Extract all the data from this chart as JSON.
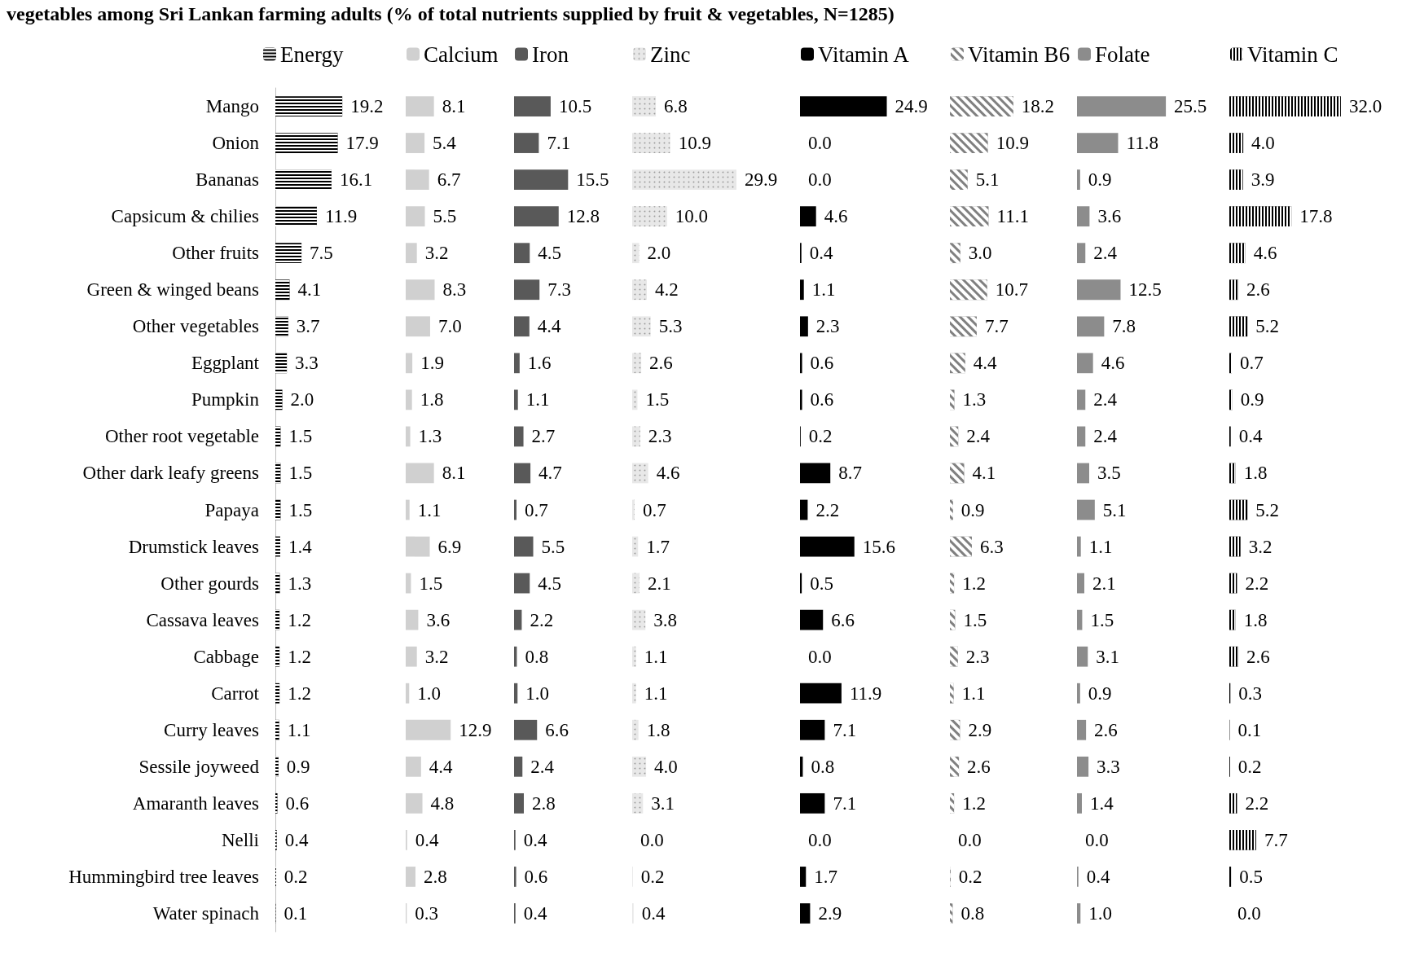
{
  "chart_data": [
    {
      "type": "bar",
      "orientation": "horizontal",
      "title": "vegetables among Sri Lankan farming adults (% of total nutrients supplied by fruit & vegetables, N=1285)",
      "legend": "top",
      "tick_labels": "y",
      "categories": [
        "Mango",
        "Onion",
        "Bananas",
        "Capsicum & chilies",
        "Other fruits",
        "Green & winged beans",
        "Other vegetables",
        "Eggplant",
        "Pumpkin",
        "Other root vegetable",
        "Other dark leafy greens",
        "Papaya",
        "Drumstick leaves",
        "Other gourds",
        "Cassava leaves",
        "Cabbage",
        "Carrot",
        "Curry leaves",
        "Sessile joyweed",
        "Amaranth leaves",
        "Nelli",
        "Hummingbird tree leaves",
        "Water spinach"
      ],
      "series": [
        {
          "name": "Energy",
          "color": "#000000",
          "values": [
            19.2,
            17.9,
            16.1,
            11.9,
            7.5,
            4.1,
            3.7,
            3.3,
            2.0,
            1.5,
            1.5,
            1.5,
            1.4,
            1.3,
            1.2,
            1.2,
            1.2,
            1.1,
            0.9,
            0.6,
            0.4,
            0.2,
            0.1
          ],
          "value_labels": [
            "19.2",
            "17.9",
            "16.1",
            "11.9",
            "7.5",
            "4.1",
            "3.7",
            "3.3",
            "2.0",
            "1.5",
            "1.5",
            "1.5",
            "1.4",
            "1.3",
            "1.2",
            "1.2",
            "1.2",
            "1.1",
            "0.9",
            "0.6",
            "0.4",
            "0.2",
            "0.1"
          ]
        }
      ]
    },
    {
      "type": "bar",
      "orientation": "horizontal",
      "legend": "top",
      "tick_labels": false,
      "categories": [
        null,
        null,
        null,
        null,
        null,
        null,
        null,
        null,
        null,
        null,
        null,
        null,
        null,
        null,
        null,
        null,
        null,
        null,
        null,
        null,
        null,
        null,
        null
      ],
      "series": [
        {
          "name": "Calcium",
          "color": "#d0d0d0",
          "values": [
            8.1,
            5.4,
            6.7,
            5.5,
            3.2,
            8.3,
            7.0,
            1.9,
            1.8,
            1.3,
            8.1,
            1.1,
            6.9,
            1.5,
            3.6,
            3.2,
            1.0,
            12.9,
            4.4,
            4.8,
            0.4,
            2.8,
            0.3
          ],
          "value_labels": [
            "8.1",
            "5.4",
            "6.7",
            "5.5",
            "3.2",
            "8.3",
            "7.0",
            "1.9",
            "1.8",
            "1.3",
            "8.1",
            "1.1",
            "6.9",
            "1.5",
            "3.6",
            "3.2",
            "1.0",
            "12.9",
            "4.4",
            "4.8",
            "0.4",
            "2.8",
            "0.3"
          ]
        }
      ]
    },
    {
      "type": "bar",
      "orientation": "horizontal",
      "legend": "top",
      "tick_labels": false,
      "categories": [
        null,
        null,
        null,
        null,
        null,
        null,
        null,
        null,
        null,
        null,
        null,
        null,
        null,
        null,
        null,
        null,
        null,
        null,
        null,
        null,
        null,
        null,
        null
      ],
      "series": [
        {
          "name": "Iron",
          "color": "#595959",
          "values": [
            10.5,
            7.1,
            15.5,
            12.8,
            4.5,
            7.3,
            4.4,
            1.6,
            1.1,
            2.7,
            4.7,
            0.7,
            5.5,
            4.5,
            2.2,
            0.8,
            1.0,
            6.6,
            2.4,
            2.8,
            0.4,
            0.6,
            0.4
          ],
          "value_labels": [
            "10.5",
            "7.1",
            "15.5",
            "12.8",
            "4.5",
            "7.3",
            "4.4",
            "1.6",
            "1.1",
            "2.7",
            "4.7",
            "0.7",
            "5.5",
            "4.5",
            "2.2",
            "0.8",
            "1.0",
            "6.6",
            "2.4",
            "2.8",
            "0.4",
            "0.6",
            "0.4"
          ]
        }
      ]
    },
    {
      "type": "bar",
      "orientation": "horizontal",
      "legend": "top",
      "tick_labels": false,
      "categories": [
        null,
        null,
        null,
        null,
        null,
        null,
        null,
        null,
        null,
        null,
        null,
        null,
        null,
        null,
        null,
        null,
        null,
        null,
        null,
        null,
        null,
        null,
        null
      ],
      "series": [
        {
          "name": "Zinc",
          "color": "#e8e8e8",
          "values": [
            6.8,
            10.9,
            29.9,
            10.0,
            2.0,
            4.2,
            5.3,
            2.6,
            1.5,
            2.3,
            4.6,
            0.7,
            1.7,
            2.1,
            3.8,
            1.1,
            1.1,
            1.8,
            4.0,
            3.1,
            0.0,
            0.2,
            0.4
          ],
          "value_labels": [
            "6.8",
            "10.9",
            "29.9",
            "10.0",
            "2.0",
            "4.2",
            "5.3",
            "2.6",
            "1.5",
            "2.3",
            "4.6",
            "0.7",
            "1.7",
            "2.1",
            "3.8",
            "1.1",
            "1.1",
            "1.8",
            "4.0",
            "3.1",
            "0.0",
            "0.2",
            "0.4"
          ]
        }
      ]
    },
    {
      "type": "bar",
      "orientation": "horizontal",
      "legend": "top",
      "tick_labels": false,
      "categories": [
        null,
        null,
        null,
        null,
        null,
        null,
        null,
        null,
        null,
        null,
        null,
        null,
        null,
        null,
        null,
        null,
        null,
        null,
        null,
        null,
        null,
        null,
        null
      ],
      "series": [
        {
          "name": "Vitamin A",
          "color": "#000000",
          "values": [
            24.9,
            0.0,
            0.0,
            4.6,
            0.4,
            1.1,
            2.3,
            0.6,
            0.6,
            0.2,
            8.7,
            2.2,
            15.6,
            0.5,
            6.6,
            0.0,
            11.9,
            7.1,
            0.8,
            7.1,
            0.0,
            1.7,
            2.9
          ],
          "value_labels": [
            "24.9",
            "0.0",
            "0.0",
            "4.6",
            "0.4",
            "1.1",
            "2.3",
            "0.6",
            "0.6",
            "0.2",
            "8.7",
            "2.2",
            "15.6",
            "0.5",
            "6.6",
            "0.0",
            "11.9",
            "7.1",
            "0.8",
            "7.1",
            "0.0",
            "1.7",
            "2.9"
          ]
        }
      ]
    },
    {
      "type": "bar",
      "orientation": "horizontal",
      "legend": "top",
      "tick_labels": false,
      "categories": [
        null,
        null,
        null,
        null,
        null,
        null,
        null,
        null,
        null,
        null,
        null,
        null,
        null,
        null,
        null,
        null,
        null,
        null,
        null,
        null,
        null,
        null,
        null
      ],
      "series": [
        {
          "name": "Vitamin B6",
          "color": "#808080",
          "values": [
            18.2,
            10.9,
            5.1,
            11.1,
            3.0,
            10.7,
            7.7,
            4.4,
            1.3,
            2.4,
            4.1,
            0.9,
            6.3,
            1.2,
            1.5,
            2.3,
            1.1,
            2.9,
            2.6,
            1.2,
            0.0,
            0.2,
            0.8
          ],
          "value_labels": [
            "18.2",
            "10.9",
            "5.1",
            "11.1",
            "3.0",
            "10.7",
            "7.7",
            "4.4",
            "1.3",
            "2.4",
            "4.1",
            "0.9",
            "6.3",
            "1.2",
            "1.5",
            "2.3",
            "1.1",
            "2.9",
            "2.6",
            "1.2",
            "0.0",
            "0.2",
            "0.8"
          ]
        }
      ]
    },
    {
      "type": "bar",
      "orientation": "horizontal",
      "legend": "top",
      "tick_labels": false,
      "categories": [
        null,
        null,
        null,
        null,
        null,
        null,
        null,
        null,
        null,
        null,
        null,
        null,
        null,
        null,
        null,
        null,
        null,
        null,
        null,
        null,
        null,
        null,
        null
      ],
      "series": [
        {
          "name": "Folate",
          "color": "#8c8c8c",
          "values": [
            25.5,
            11.8,
            0.9,
            3.6,
            2.4,
            12.5,
            7.8,
            4.6,
            2.4,
            2.4,
            3.5,
            5.1,
            1.1,
            2.1,
            1.5,
            3.1,
            0.9,
            2.6,
            3.3,
            1.4,
            0.0,
            0.4,
            1.0
          ],
          "value_labels": [
            "25.5",
            "11.8",
            "0.9",
            "3.6",
            "2.4",
            "12.5",
            "7.8",
            "4.6",
            "2.4",
            "2.4",
            "3.5",
            "5.1",
            "1.1",
            "2.1",
            "1.5",
            "3.1",
            "0.9",
            "2.6",
            "3.3",
            "1.4",
            "0.0",
            "0.4",
            "1.0"
          ]
        }
      ]
    },
    {
      "type": "bar",
      "orientation": "horizontal",
      "legend": "top",
      "tick_labels": false,
      "categories": [
        null,
        null,
        null,
        null,
        null,
        null,
        null,
        null,
        null,
        null,
        null,
        null,
        null,
        null,
        null,
        null,
        null,
        null,
        null,
        null,
        null,
        null,
        null
      ],
      "series": [
        {
          "name": "Vitamin C",
          "color": "#000000",
          "values": [
            32.0,
            4.0,
            3.9,
            17.8,
            4.6,
            2.6,
            5.2,
            0.7,
            0.9,
            0.4,
            1.8,
            5.2,
            3.2,
            2.2,
            1.8,
            2.6,
            0.3,
            0.1,
            0.2,
            2.2,
            7.7,
            0.5,
            0.0
          ],
          "value_labels": [
            "32.0",
            "4.0",
            "3.9",
            "17.8",
            "4.6",
            "2.6",
            "5.2",
            "0.7",
            "0.9",
            "0.4",
            "1.8",
            "5.2",
            "3.2",
            "2.2",
            "1.8",
            "2.6",
            "0.3",
            "0.1",
            "0.2",
            "2.2",
            "7.7",
            "0.5",
            "0.0"
          ]
        }
      ]
    }
  ]
}
